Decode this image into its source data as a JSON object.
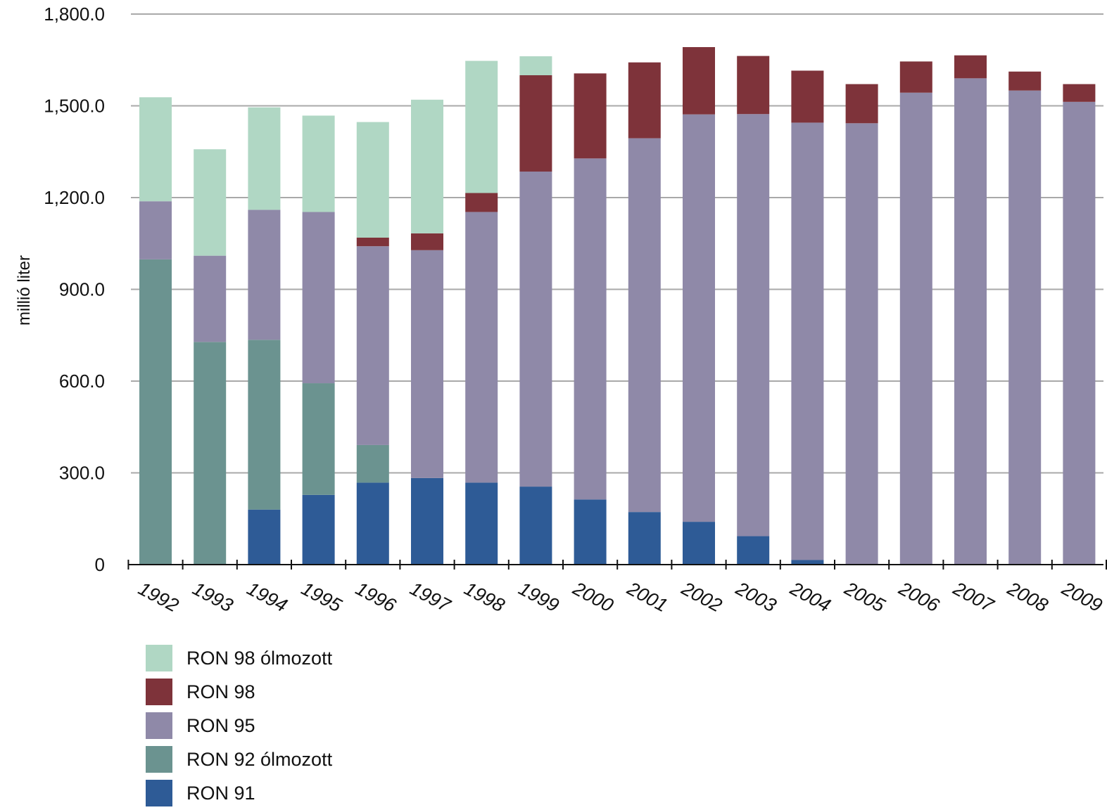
{
  "chart_data": {
    "type": "bar",
    "stacked": true,
    "ylabel": "millió liter",
    "xlabel": "",
    "ylim": [
      0,
      1800
    ],
    "yticks": [
      0,
      300,
      600,
      900,
      1200,
      1500,
      1800
    ],
    "ytick_labels": [
      "0",
      "300.0",
      "600.0",
      "900.0",
      "1,200.0",
      "1,500.0",
      "1,800.0"
    ],
    "grid": true,
    "legend_position": "bottom-left",
    "categories": [
      "1992",
      "1993",
      "1994",
      "1995",
      "1996",
      "1997",
      "1998",
      "1999",
      "2000",
      "2001",
      "2002",
      "2003",
      "2004",
      "2005",
      "2006",
      "2007",
      "2008",
      "2009"
    ],
    "series": [
      {
        "name": "RON 91",
        "color": "#2e5b96",
        "values": [
          0,
          0,
          180,
          228,
          268,
          283,
          268,
          255,
          213,
          172,
          140,
          93,
          15,
          0,
          0,
          0,
          0,
          0
        ]
      },
      {
        "name": "RON 92 ólmozott",
        "color": "#6b9390",
        "values": [
          998,
          728,
          555,
          365,
          123,
          0,
          0,
          0,
          0,
          0,
          0,
          0,
          0,
          0,
          0,
          0,
          0,
          0
        ]
      },
      {
        "name": "RON 95",
        "color": "#8f89a8",
        "values": [
          190,
          282,
          425,
          560,
          650,
          745,
          885,
          1030,
          1115,
          1222,
          1332,
          1380,
          1430,
          1443,
          1543,
          1590,
          1550,
          1513
        ]
      },
      {
        "name": "RON 98",
        "color": "#7e333a",
        "values": [
          0,
          0,
          0,
          0,
          28,
          55,
          62,
          315,
          278,
          248,
          220,
          190,
          170,
          128,
          102,
          75,
          62,
          58
        ]
      },
      {
        "name": "RON 98 ólmozott",
        "color": "#b0d7c4",
        "values": [
          340,
          348,
          335,
          315,
          378,
          437,
          432,
          62,
          0,
          0,
          0,
          0,
          0,
          0,
          0,
          0,
          0,
          0
        ]
      }
    ],
    "legend_order": [
      "RON 98 ólmozott",
      "RON 98",
      "RON 95",
      "RON 92 ólmozott",
      "RON 91"
    ]
  }
}
